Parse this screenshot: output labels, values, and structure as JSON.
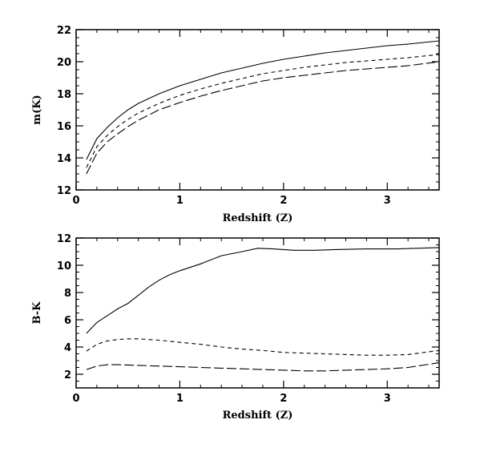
{
  "chart_data": [
    {
      "type": "line",
      "xlabel": "Redshift (Z)",
      "ylabel": "m(K)",
      "xlim": [
        0,
        3.5
      ],
      "ylim": [
        12,
        22
      ],
      "xticks": [
        0,
        1,
        2,
        3
      ],
      "yticks": [
        12,
        14,
        16,
        18,
        20,
        22
      ],
      "grid": false,
      "series": [
        {
          "style": "solid",
          "x": [
            0.1,
            0.2,
            0.3,
            0.4,
            0.5,
            0.6,
            0.8,
            1.0,
            1.2,
            1.4,
            1.6,
            1.8,
            2.0,
            2.2,
            2.4,
            2.6,
            2.8,
            3.0,
            3.2,
            3.5
          ],
          "y": [
            13.9,
            15.2,
            15.9,
            16.5,
            17.0,
            17.4,
            18.0,
            18.5,
            18.9,
            19.3,
            19.6,
            19.9,
            20.15,
            20.35,
            20.55,
            20.7,
            20.85,
            21.0,
            21.1,
            21.3
          ]
        },
        {
          "style": "short-dashed",
          "x": [
            0.1,
            0.2,
            0.3,
            0.4,
            0.5,
            0.6,
            0.8,
            1.0,
            1.2,
            1.4,
            1.6,
            1.8,
            2.0,
            2.2,
            2.4,
            2.6,
            2.8,
            3.0,
            3.2,
            3.5
          ],
          "y": [
            13.4,
            14.7,
            15.4,
            15.95,
            16.4,
            16.8,
            17.4,
            17.9,
            18.3,
            18.65,
            18.95,
            19.25,
            19.45,
            19.65,
            19.8,
            19.95,
            20.05,
            20.15,
            20.25,
            20.45
          ]
        },
        {
          "style": "long-dashed",
          "x": [
            0.1,
            0.2,
            0.3,
            0.4,
            0.5,
            0.6,
            0.8,
            1.0,
            1.2,
            1.4,
            1.6,
            1.8,
            2.0,
            2.2,
            2.4,
            2.6,
            2.8,
            3.0,
            3.2,
            3.5
          ],
          "y": [
            13.0,
            14.3,
            15.0,
            15.5,
            15.95,
            16.35,
            17.0,
            17.45,
            17.85,
            18.2,
            18.5,
            18.8,
            19.0,
            19.15,
            19.3,
            19.45,
            19.55,
            19.65,
            19.75,
            20.0
          ]
        }
      ]
    },
    {
      "type": "line",
      "xlabel": "Redshift (Z)",
      "ylabel": "B-K",
      "xlim": [
        0,
        3.5
      ],
      "ylim": [
        1,
        12
      ],
      "xticks": [
        0,
        1,
        2,
        3
      ],
      "yticks": [
        2,
        4,
        6,
        8,
        10,
        12
      ],
      "grid": false,
      "series": [
        {
          "style": "solid",
          "x": [
            0.1,
            0.2,
            0.3,
            0.4,
            0.5,
            0.6,
            0.7,
            0.8,
            0.9,
            1.0,
            1.2,
            1.4,
            1.6,
            1.75,
            1.9,
            2.1,
            2.3,
            2.5,
            2.8,
            3.1,
            3.5
          ],
          "y": [
            5.0,
            5.8,
            6.3,
            6.8,
            7.2,
            7.8,
            8.4,
            8.9,
            9.3,
            9.6,
            10.1,
            10.7,
            11.0,
            11.25,
            11.2,
            11.1,
            11.1,
            11.15,
            11.2,
            11.2,
            11.3
          ]
        },
        {
          "style": "short-dashed",
          "x": [
            0.1,
            0.2,
            0.3,
            0.4,
            0.5,
            0.6,
            0.8,
            1.0,
            1.2,
            1.4,
            1.6,
            1.8,
            2.0,
            2.2,
            2.4,
            2.6,
            2.8,
            3.0,
            3.2,
            3.5
          ],
          "y": [
            3.7,
            4.2,
            4.45,
            4.55,
            4.6,
            4.6,
            4.5,
            4.35,
            4.2,
            4.0,
            3.85,
            3.75,
            3.6,
            3.55,
            3.5,
            3.45,
            3.4,
            3.4,
            3.45,
            3.75
          ]
        },
        {
          "style": "long-dashed",
          "x": [
            0.1,
            0.2,
            0.3,
            0.4,
            0.6,
            0.8,
            1.0,
            1.2,
            1.4,
            1.6,
            1.8,
            2.0,
            2.2,
            2.4,
            2.6,
            2.8,
            3.0,
            3.2,
            3.5
          ],
          "y": [
            2.35,
            2.6,
            2.7,
            2.7,
            2.65,
            2.6,
            2.55,
            2.5,
            2.45,
            2.4,
            2.35,
            2.3,
            2.25,
            2.25,
            2.3,
            2.35,
            2.4,
            2.5,
            2.85
          ]
        }
      ]
    }
  ]
}
